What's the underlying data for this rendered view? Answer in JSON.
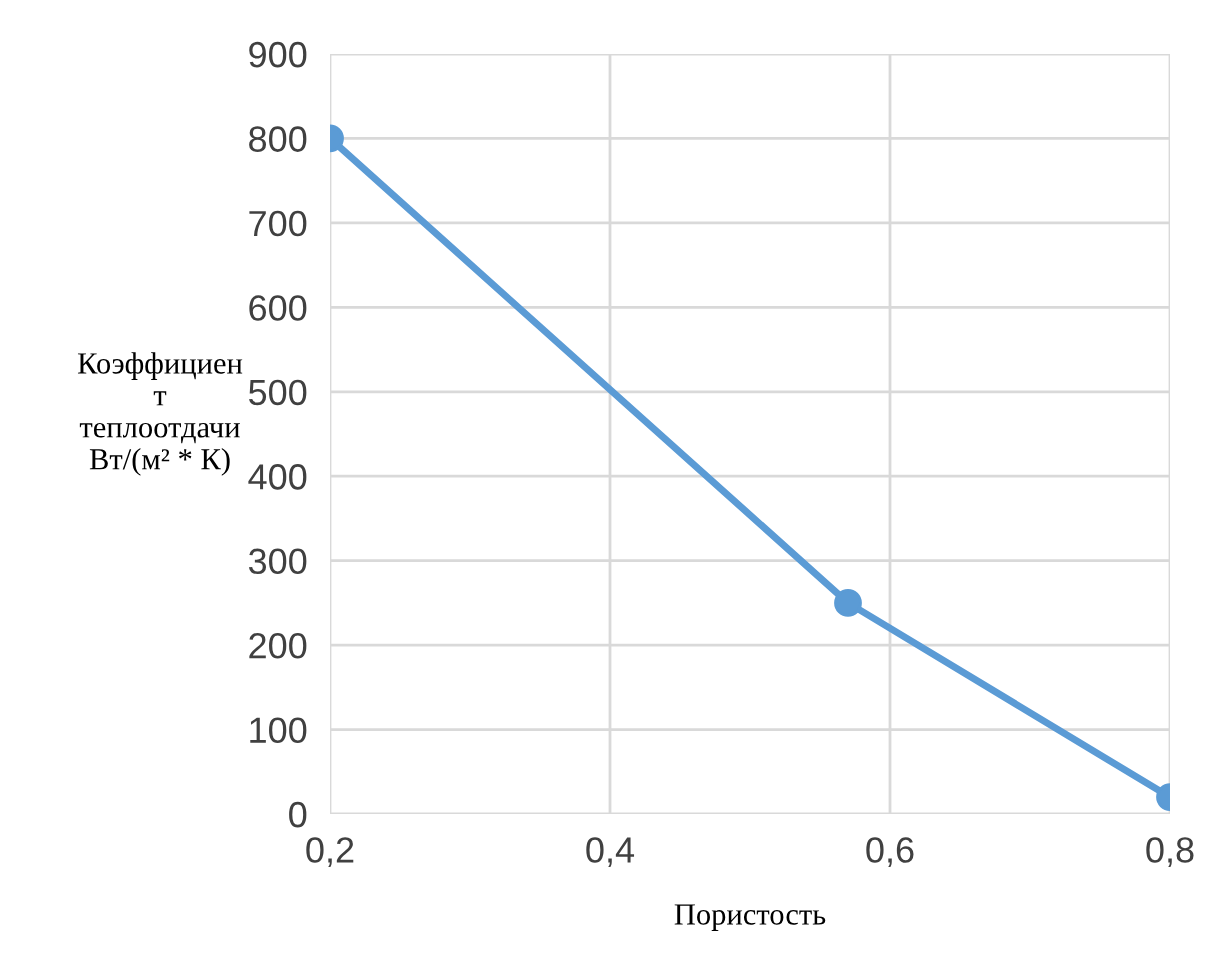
{
  "chart_data": {
    "type": "line",
    "xlabel": "Пористость",
    "ylabel": "Коэффициен\nт\nтеплоотдачи\nВт/(м² * К)",
    "x": [
      0.2,
      0.57,
      0.8
    ],
    "series": [
      {
        "color": "#5b9bd5",
        "values": [
          800,
          250,
          20
        ]
      }
    ],
    "xlim": [
      0.2,
      0.8
    ],
    "xticks": [
      {
        "value": 0.2,
        "label": "0,2"
      },
      {
        "value": 0.4,
        "label": "0,4"
      },
      {
        "value": 0.6,
        "label": "0,6"
      },
      {
        "value": 0.8,
        "label": "0,8"
      }
    ],
    "ylim": [
      0,
      900
    ],
    "yticks": [
      0,
      100,
      200,
      300,
      400,
      500,
      600,
      700,
      800,
      900
    ],
    "grid": true,
    "marker": "circle",
    "line_style": "solid"
  }
}
